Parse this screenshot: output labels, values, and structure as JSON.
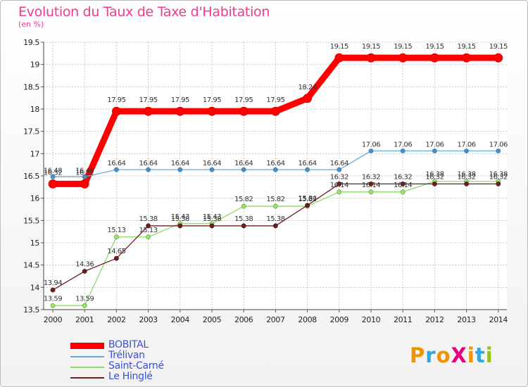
{
  "header": {
    "title": "Evolution du Taux de Taxe d'Habitation",
    "subtitle": "(en %)"
  },
  "logo": {
    "text": "ProXiti",
    "colors": [
      "#f39200",
      "#2ea8e0",
      "#f39200",
      "#e6007e",
      "#f39200",
      "#2ea8e0",
      "#97c11f"
    ]
  },
  "chart_data": {
    "type": "line",
    "title": "Evolution du Taux de Taxe d'Habitation",
    "ylabel": "(en %)",
    "xlabel": "",
    "ylim": [
      13.5,
      19.5
    ],
    "yticks": [
      "13.5",
      "14",
      "14.5",
      "15",
      "15.5",
      "16",
      "16.5",
      "17",
      "17.5",
      "18",
      "18.5",
      "19",
      "19.5"
    ],
    "categories": [
      "2000",
      "2001",
      "2002",
      "2003",
      "2004",
      "2005",
      "2006",
      "2007",
      "2008",
      "2009",
      "2010",
      "2011",
      "2012",
      "2013",
      "2014"
    ],
    "legend_position": "bottom-left",
    "series": [
      {
        "name": "BOBITAL",
        "color": "#ff0000",
        "values": [
          16.32,
          16.32,
          17.95,
          17.95,
          17.95,
          17.95,
          17.95,
          17.95,
          18.24,
          19.15,
          19.15,
          19.15,
          19.15,
          19.15,
          19.15
        ],
        "labels": [
          "16.32",
          "16.32",
          "17.95",
          "17.95",
          "17.95",
          "17.95",
          "17.95",
          "17.95",
          "18.24",
          "19.15",
          "19.15",
          "19.15",
          "19.15",
          "19.15",
          "19.15"
        ]
      },
      {
        "name": "Trélivan",
        "color": "#6aa8d6",
        "values": [
          16.48,
          16.48,
          16.64,
          16.64,
          16.64,
          16.64,
          16.64,
          16.64,
          16.64,
          16.64,
          17.06,
          17.06,
          17.06,
          17.06,
          17.06
        ],
        "labels": [
          "16.48",
          "16.48",
          "16.64",
          "16.64",
          "16.64",
          "16.64",
          "16.64",
          "16.64",
          "16.64",
          "16.64",
          "17.06",
          "17.06",
          "17.06",
          "17.06",
          "17.06"
        ]
      },
      {
        "name": "Saint-Carné",
        "color": "#8fd96a",
        "values": [
          13.59,
          13.59,
          15.13,
          15.13,
          15.43,
          15.43,
          15.82,
          15.82,
          15.82,
          16.14,
          16.14,
          16.14,
          16.38,
          16.38,
          16.38
        ],
        "labels": [
          "13.59",
          "13.59",
          "15.13",
          "15.13",
          "15.43",
          "15.43",
          "15.82",
          "15.82",
          "15.82",
          "16.14",
          "16.14",
          "16.14",
          "16.38",
          "16.38",
          "16.38"
        ]
      },
      {
        "name": "Le Hinglé",
        "color": "#6e1f22",
        "values": [
          13.94,
          14.36,
          14.65,
          15.38,
          15.38,
          15.38,
          15.38,
          15.38,
          15.84,
          16.32,
          16.32,
          16.32,
          16.32,
          16.32,
          16.32
        ],
        "labels": [
          "13.94",
          "14.36",
          "14.65",
          "15.38",
          "15.38",
          "15.38",
          "15.38",
          "15.38",
          "15.84",
          "16.32",
          "16.32",
          "16.32",
          "16.32",
          "16.32",
          "16.32"
        ]
      }
    ]
  }
}
